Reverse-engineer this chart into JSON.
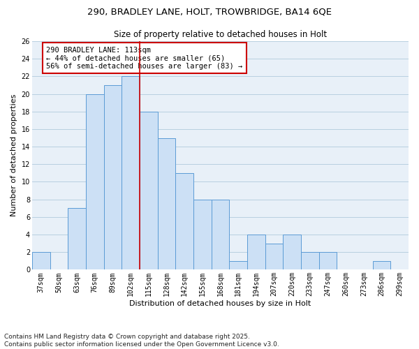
{
  "title_line1": "290, BRADLEY LANE, HOLT, TROWBRIDGE, BA14 6QE",
  "title_line2": "Size of property relative to detached houses in Holt",
  "xlabel": "Distribution of detached houses by size in Holt",
  "ylabel": "Number of detached properties",
  "categories": [
    "37sqm",
    "50sqm",
    "63sqm",
    "76sqm",
    "89sqm",
    "102sqm",
    "115sqm",
    "128sqm",
    "142sqm",
    "155sqm",
    "168sqm",
    "181sqm",
    "194sqm",
    "207sqm",
    "220sqm",
    "233sqm",
    "247sqm",
    "260sqm",
    "273sqm",
    "286sqm",
    "299sqm"
  ],
  "values": [
    2,
    0,
    7,
    20,
    21,
    22,
    18,
    15,
    11,
    8,
    8,
    1,
    4,
    3,
    4,
    2,
    2,
    0,
    0,
    1,
    0
  ],
  "bar_color": "#cce0f5",
  "bar_edge_color": "#5b9bd5",
  "grid_color": "#b8cfe0",
  "background_color": "#e8f0f8",
  "vline_x": 5.5,
  "vline_color": "#cc0000",
  "annotation_text": "290 BRADLEY LANE: 113sqm\n← 44% of detached houses are smaller (65)\n56% of semi-detached houses are larger (83) →",
  "annotation_box_edge_color": "#cc0000",
  "footnote": "Contains HM Land Registry data © Crown copyright and database right 2025.\nContains public sector information licensed under the Open Government Licence v3.0.",
  "ylim": [
    0,
    26
  ],
  "yticks": [
    0,
    2,
    4,
    6,
    8,
    10,
    12,
    14,
    16,
    18,
    20,
    22,
    24,
    26
  ],
  "title_fontsize": 9.5,
  "subtitle_fontsize": 8.5,
  "xlabel_fontsize": 8,
  "ylabel_fontsize": 8,
  "tick_fontsize": 7,
  "annot_fontsize": 7.5,
  "footnote_fontsize": 6.5
}
